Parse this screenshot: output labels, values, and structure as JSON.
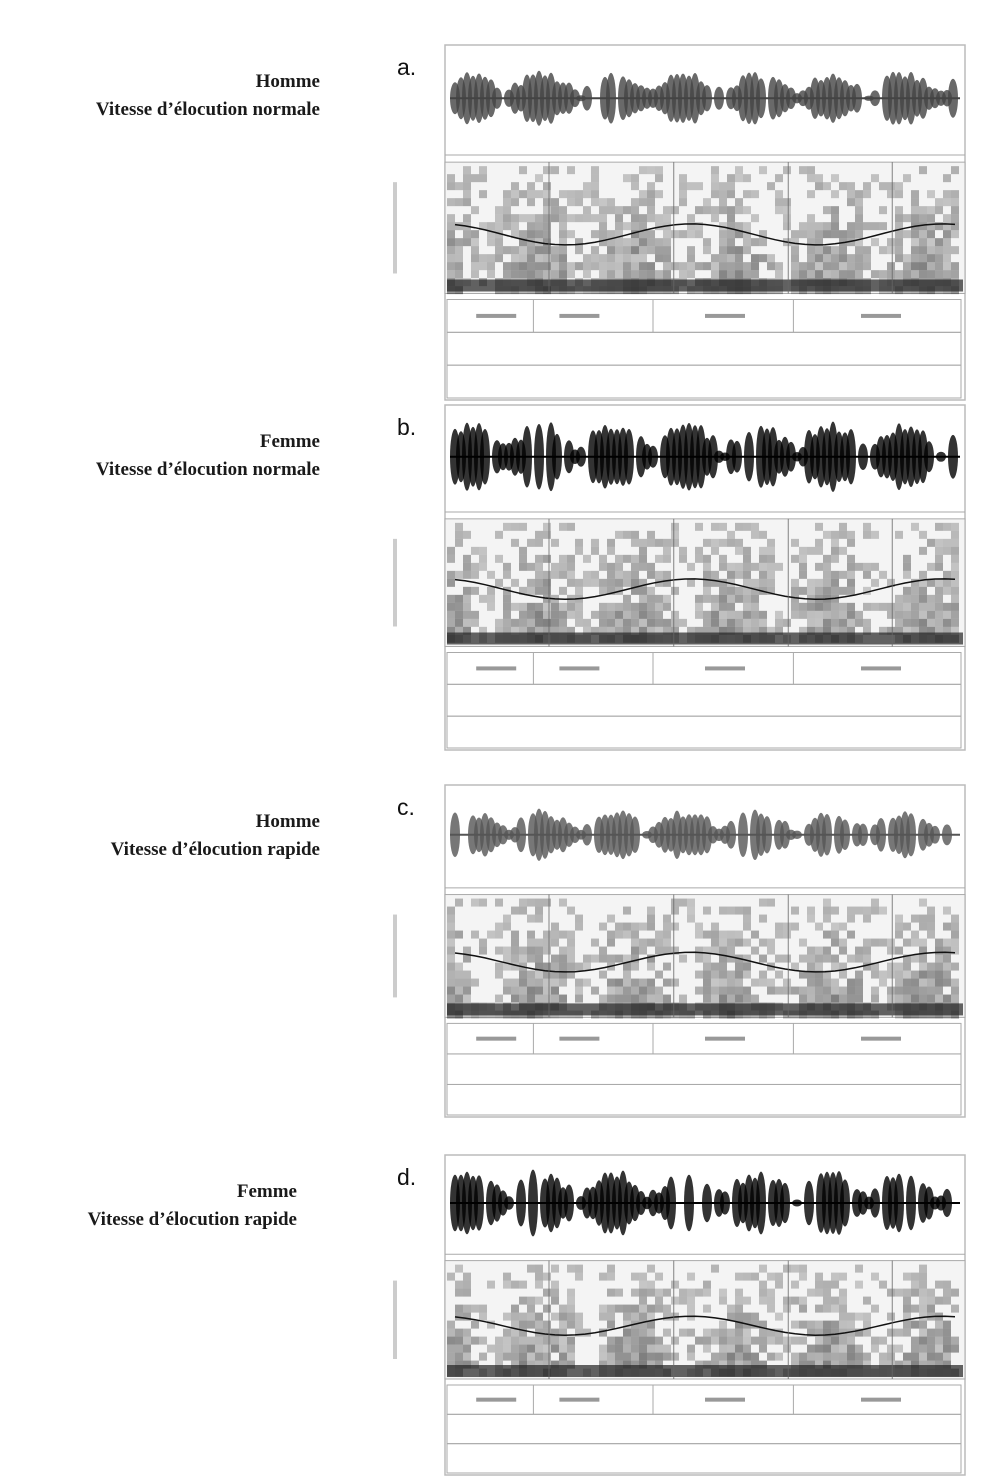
{
  "panels": [
    {
      "letter": "a.",
      "speaker": "Homme",
      "rate": "Vitesse d’élocution normale"
    },
    {
      "letter": "b.",
      "speaker": "Femme",
      "rate": "Vitesse d’élocution normale"
    },
    {
      "letter": "c.",
      "speaker": "Homme",
      "rate": "Vitesse d’élocution rapide"
    },
    {
      "letter": "d.",
      "speaker": "Femme",
      "rate": "Vitesse d’élocution rapide"
    }
  ]
}
